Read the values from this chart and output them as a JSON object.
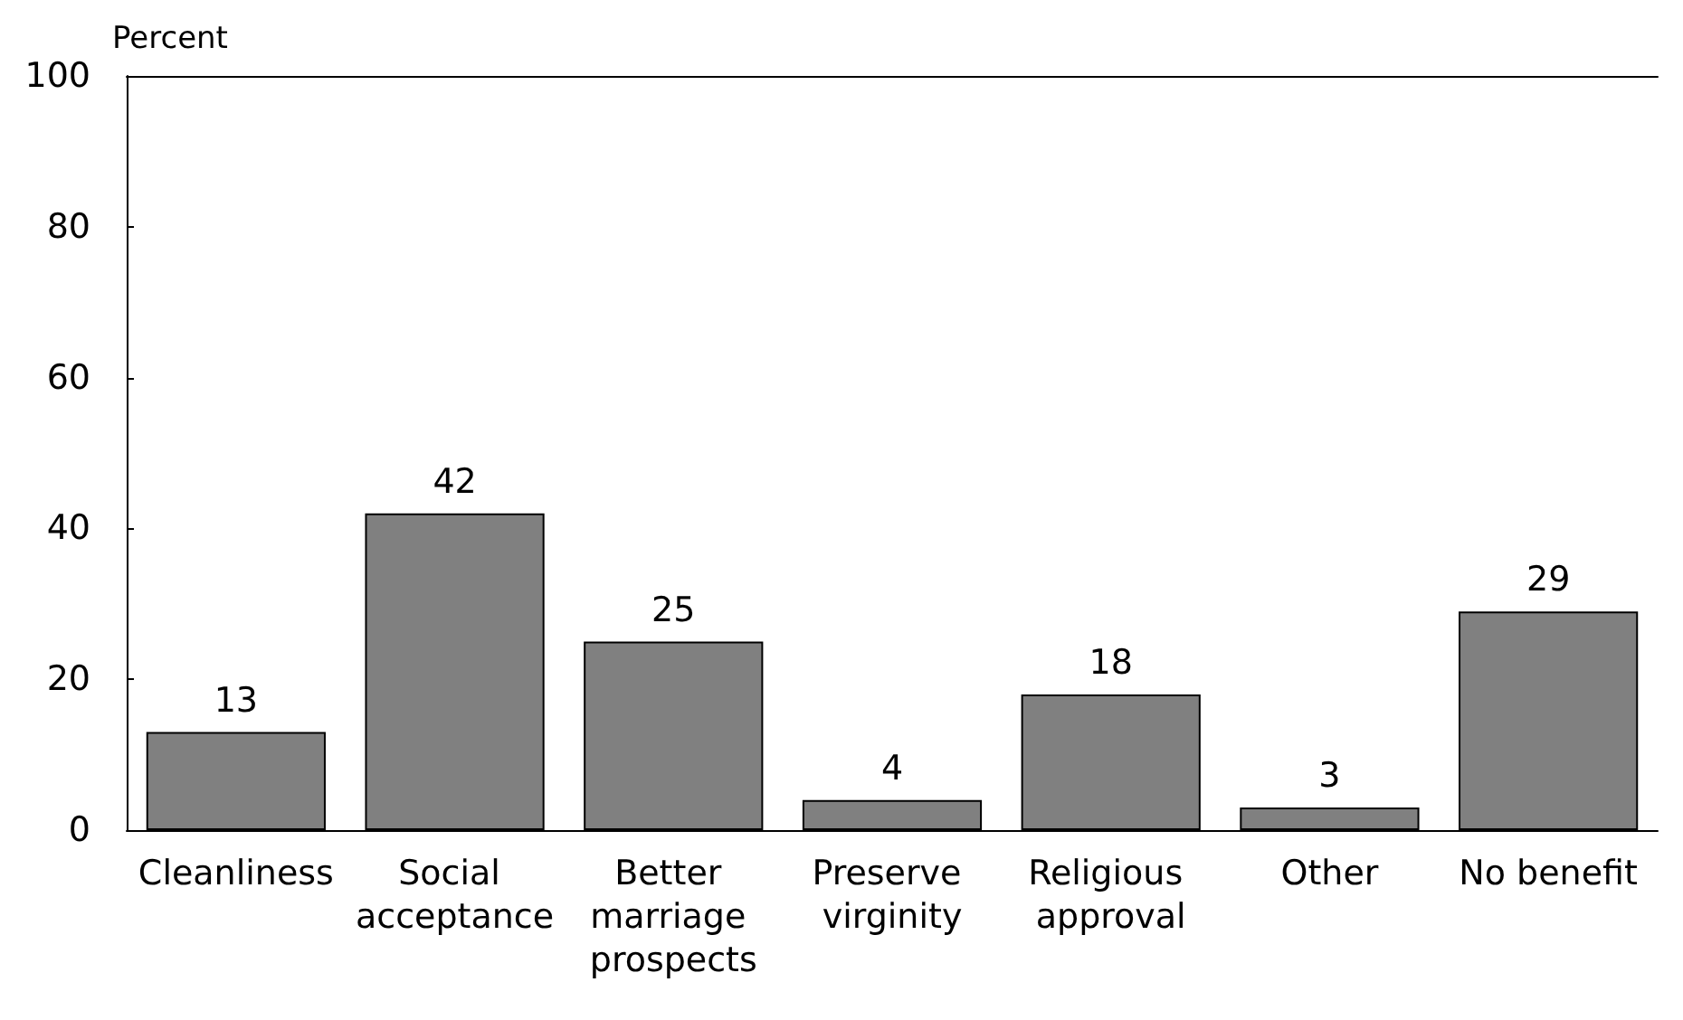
{
  "chart_data": {
    "type": "bar",
    "ylabel": "Percent",
    "categories": [
      "Cleanliness",
      "Social acceptance",
      "Better marriage prospects",
      "Preserve virginity",
      "Religious approval",
      "Other",
      "No benefit"
    ],
    "values": [
      13,
      42,
      25,
      4,
      18,
      3,
      29
    ],
    "color": "#808080",
    "data_labels": true,
    "ylim": [
      0,
      100
    ],
    "yticks": [
      0,
      20,
      40,
      60,
      80,
      100
    ],
    "grid": false
  }
}
